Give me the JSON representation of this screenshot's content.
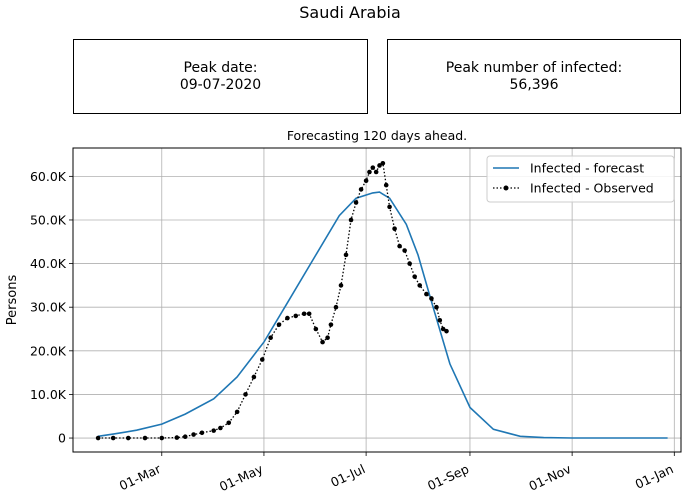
{
  "figure": {
    "title": "Saudi Arabia",
    "peak_date_label": "Peak date:",
    "peak_date_value": "09-07-2020",
    "peak_infected_label": "Peak number of infected:",
    "peak_infected_value": "56,396"
  },
  "chart_data": {
    "type": "line",
    "title": "Forecasting 120 days ahead.",
    "xlabel": "",
    "ylabel": "Persons",
    "x_axis": "date",
    "xlim": [
      "2020-01-08",
      "2021-01-05"
    ],
    "ylim": [
      -3200,
      66500
    ],
    "x_ticks": [
      {
        "date": "2020-03-01",
        "label": "01-Mar"
      },
      {
        "date": "2020-05-01",
        "label": "01-May"
      },
      {
        "date": "2020-07-01",
        "label": "01-Jul"
      },
      {
        "date": "2020-09-01",
        "label": "01-Sep"
      },
      {
        "date": "2020-11-01",
        "label": "01-Nov"
      },
      {
        "date": "2021-01-01",
        "label": "01-Jan"
      }
    ],
    "y_ticks": [
      {
        "value": 0,
        "label": "0"
      },
      {
        "value": 10000,
        "label": "10.0K"
      },
      {
        "value": 20000,
        "label": "20.0K"
      },
      {
        "value": 30000,
        "label": "30.0K"
      },
      {
        "value": 40000,
        "label": "40.0K"
      },
      {
        "value": 50000,
        "label": "50.0K"
      },
      {
        "value": 60000,
        "label": "60.0K"
      }
    ],
    "grid": true,
    "legend_position": "top-right",
    "series": [
      {
        "name": "Infected - forecast",
        "color": "#1f77b4",
        "style": "solid",
        "points": [
          [
            "2020-01-23",
            400
          ],
          [
            "2020-02-01",
            900
          ],
          [
            "2020-02-15",
            1800
          ],
          [
            "2020-03-01",
            3200
          ],
          [
            "2020-03-15",
            5500
          ],
          [
            "2020-04-01",
            9000
          ],
          [
            "2020-04-15",
            14000
          ],
          [
            "2020-05-01",
            22000
          ],
          [
            "2020-05-15",
            31000
          ],
          [
            "2020-06-01",
            42000
          ],
          [
            "2020-06-15",
            51000
          ],
          [
            "2020-06-25",
            55000
          ],
          [
            "2020-07-05",
            56200
          ],
          [
            "2020-07-09",
            56396
          ],
          [
            "2020-07-15",
            55000
          ],
          [
            "2020-07-25",
            49000
          ],
          [
            "2020-08-01",
            42000
          ],
          [
            "2020-08-10",
            30000
          ],
          [
            "2020-08-20",
            17000
          ],
          [
            "2020-09-01",
            7000
          ],
          [
            "2020-09-15",
            2000
          ],
          [
            "2020-10-01",
            400
          ],
          [
            "2020-10-15",
            100
          ],
          [
            "2020-11-01",
            20
          ],
          [
            "2020-12-01",
            0
          ],
          [
            "2020-12-28",
            0
          ]
        ]
      },
      {
        "name": "Infected - Observed",
        "color": "#000000",
        "style": "dotted-markers",
        "points": [
          [
            "2020-01-23",
            0
          ],
          [
            "2020-02-01",
            0
          ],
          [
            "2020-02-10",
            0
          ],
          [
            "2020-02-20",
            0
          ],
          [
            "2020-03-01",
            0
          ],
          [
            "2020-03-10",
            100
          ],
          [
            "2020-03-15",
            300
          ],
          [
            "2020-03-20",
            800
          ],
          [
            "2020-03-25",
            1200
          ],
          [
            "2020-04-01",
            1700
          ],
          [
            "2020-04-05",
            2300
          ],
          [
            "2020-04-10",
            3500
          ],
          [
            "2020-04-15",
            6000
          ],
          [
            "2020-04-20",
            10000
          ],
          [
            "2020-04-25",
            14000
          ],
          [
            "2020-04-30",
            18000
          ],
          [
            "2020-05-05",
            23000
          ],
          [
            "2020-05-10",
            26000
          ],
          [
            "2020-05-15",
            27500
          ],
          [
            "2020-05-20",
            28000
          ],
          [
            "2020-05-25",
            28500
          ],
          [
            "2020-05-28",
            28500
          ],
          [
            "2020-06-01",
            25000
          ],
          [
            "2020-06-05",
            22000
          ],
          [
            "2020-06-08",
            23000
          ],
          [
            "2020-06-10",
            26000
          ],
          [
            "2020-06-13",
            30000
          ],
          [
            "2020-06-16",
            35000
          ],
          [
            "2020-06-19",
            42000
          ],
          [
            "2020-06-22",
            50000
          ],
          [
            "2020-06-25",
            54000
          ],
          [
            "2020-06-28",
            57000
          ],
          [
            "2020-07-01",
            59000
          ],
          [
            "2020-07-03",
            61000
          ],
          [
            "2020-07-05",
            62000
          ],
          [
            "2020-07-07",
            61000
          ],
          [
            "2020-07-09",
            62500
          ],
          [
            "2020-07-11",
            63000
          ],
          [
            "2020-07-13",
            58000
          ],
          [
            "2020-07-15",
            53000
          ],
          [
            "2020-07-18",
            48000
          ],
          [
            "2020-07-21",
            44000
          ],
          [
            "2020-07-24",
            43000
          ],
          [
            "2020-07-27",
            40000
          ],
          [
            "2020-07-30",
            37000
          ],
          [
            "2020-08-02",
            35000
          ],
          [
            "2020-08-06",
            33000
          ],
          [
            "2020-08-09",
            32000
          ],
          [
            "2020-08-12",
            30000
          ],
          [
            "2020-08-14",
            27000
          ],
          [
            "2020-08-16",
            25000
          ],
          [
            "2020-08-18",
            24500
          ]
        ]
      }
    ]
  }
}
